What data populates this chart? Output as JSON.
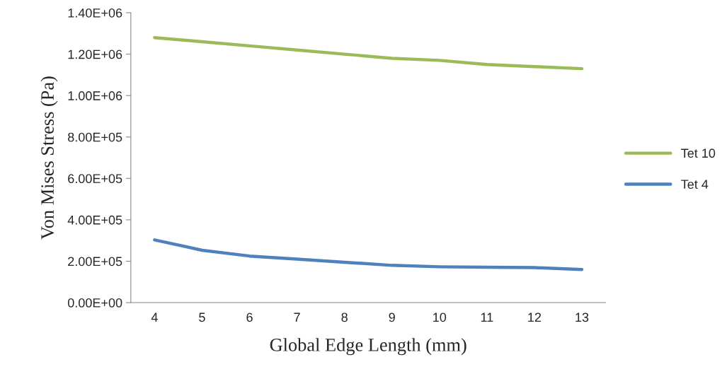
{
  "chart_data": {
    "type": "line",
    "xlabel": "Global Edge Length (mm)",
    "ylabel": "Von Mises Stress (Pa)",
    "categories": [
      "4",
      "5",
      "6",
      "7",
      "8",
      "9",
      "10",
      "11",
      "12",
      "13"
    ],
    "series": [
      {
        "name": "Tet 10",
        "color": "#9bbb59",
        "values": [
          1280000,
          1260000,
          1240000,
          1220000,
          1200000,
          1180000,
          1170000,
          1150000,
          1140000,
          1130000
        ]
      },
      {
        "name": "Tet 4",
        "color": "#4f81bd",
        "values": [
          303000,
          253000,
          225000,
          210000,
          195000,
          180000,
          173000,
          171000,
          169000,
          160000
        ]
      }
    ],
    "ylim": [
      0,
      1400000
    ],
    "yticks": [
      {
        "value": 0,
        "label": "0.00E+00"
      },
      {
        "value": 200000,
        "label": "2.00E+05"
      },
      {
        "value": 400000,
        "label": "4.00E+05"
      },
      {
        "value": 600000,
        "label": "6.00E+05"
      },
      {
        "value": 800000,
        "label": "8.00E+05"
      },
      {
        "value": 1000000,
        "label": "1.00E+06"
      },
      {
        "value": 1200000,
        "label": "1.20E+06"
      },
      {
        "value": 1400000,
        "label": "1.40E+06"
      }
    ],
    "grid": false,
    "legend": "right",
    "marker": "none",
    "line_style": "solid"
  }
}
